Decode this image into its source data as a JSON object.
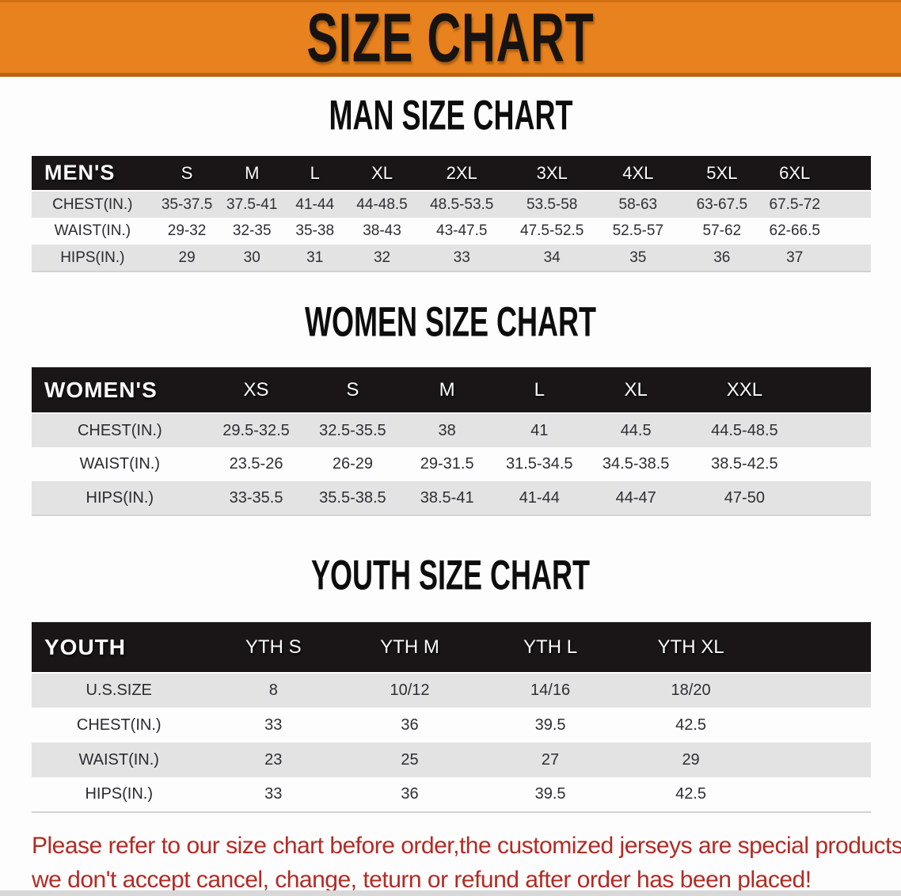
{
  "banner": {
    "title": "SIZE CHART"
  },
  "colors": {
    "banner_bg": "#E8821E",
    "banner_text": "#161311",
    "table_header_bg": "#1A1617",
    "table_header_text": "#FBFBFB",
    "row_stripe_gray": "#E3E3E3",
    "row_stripe_white": "#FDFDFD",
    "data_text": "#2E2E35",
    "disclaimer_text": "#B12B25",
    "bottom_bar": "#D8D8D8"
  },
  "sections": [
    {
      "heading": "MAN SIZE CHART",
      "table": {
        "label": "MEN'S",
        "columns": [
          "S",
          "M",
          "L",
          "XL",
          "2XL",
          "3XL",
          "4XL",
          "5XL",
          "6XL"
        ],
        "rows": [
          {
            "label": "CHEST(IN.)",
            "values": [
              "35-37.5",
              "37.5-41",
              "41-44",
              "44-48.5",
              "48.5-53.5",
              "53.5-58",
              "58-63",
              "63-67.5",
              "67.5-72"
            ]
          },
          {
            "label": "WAIST(IN.)",
            "values": [
              "29-32",
              "32-35",
              "35-38",
              "38-43",
              "43-47.5",
              "47.5-52.5",
              "52.5-57",
              "57-62",
              "62-66.5"
            ]
          },
          {
            "label": "HIPS(IN.)",
            "values": [
              "29",
              "30",
              "31",
              "32",
              "33",
              "34",
              "35",
              "36",
              "37"
            ]
          }
        ]
      }
    },
    {
      "heading": "WOMEN SIZE CHART",
      "table": {
        "label": "WOMEN'S",
        "columns": [
          "XS",
          "S",
          "M",
          "L",
          "XL",
          "XXL"
        ],
        "rows": [
          {
            "label": "CHEST(IN.)",
            "values": [
              "29.5-32.5",
              "32.5-35.5",
              "38",
              "41",
              "44.5",
              "44.5-48.5"
            ]
          },
          {
            "label": "WAIST(IN.)",
            "values": [
              "23.5-26",
              "26-29",
              "29-31.5",
              "31.5-34.5",
              "34.5-38.5",
              "38.5-42.5"
            ]
          },
          {
            "label": "HIPS(IN.)",
            "values": [
              "33-35.5",
              "35.5-38.5",
              "38.5-41",
              "41-44",
              "44-47",
              "47-50"
            ]
          }
        ]
      }
    },
    {
      "heading": "YOUTH SIZE CHART",
      "table": {
        "label": "YOUTH",
        "columns": [
          "YTH S",
          "YTH M",
          "YTH L",
          "YTH XL"
        ],
        "rows": [
          {
            "label": "U.S.SIZE",
            "values": [
              "8",
              "10/12",
              "14/16",
              "18/20"
            ]
          },
          {
            "label": "CHEST(IN.)",
            "values": [
              "33",
              "36",
              "39.5",
              "42.5"
            ]
          },
          {
            "label": "WAIST(IN.)",
            "values": [
              "23",
              "25",
              "27",
              "29"
            ]
          },
          {
            "label": "HIPS(IN.)",
            "values": [
              "33",
              "36",
              "39.5",
              "42.5"
            ]
          }
        ]
      }
    }
  ],
  "disclaimer": {
    "line1": "Please refer to our size chart before order,the customized jerseys are special products,",
    "line2": "we don't accept cancel, change, teturn or refund after order has been placed!"
  }
}
